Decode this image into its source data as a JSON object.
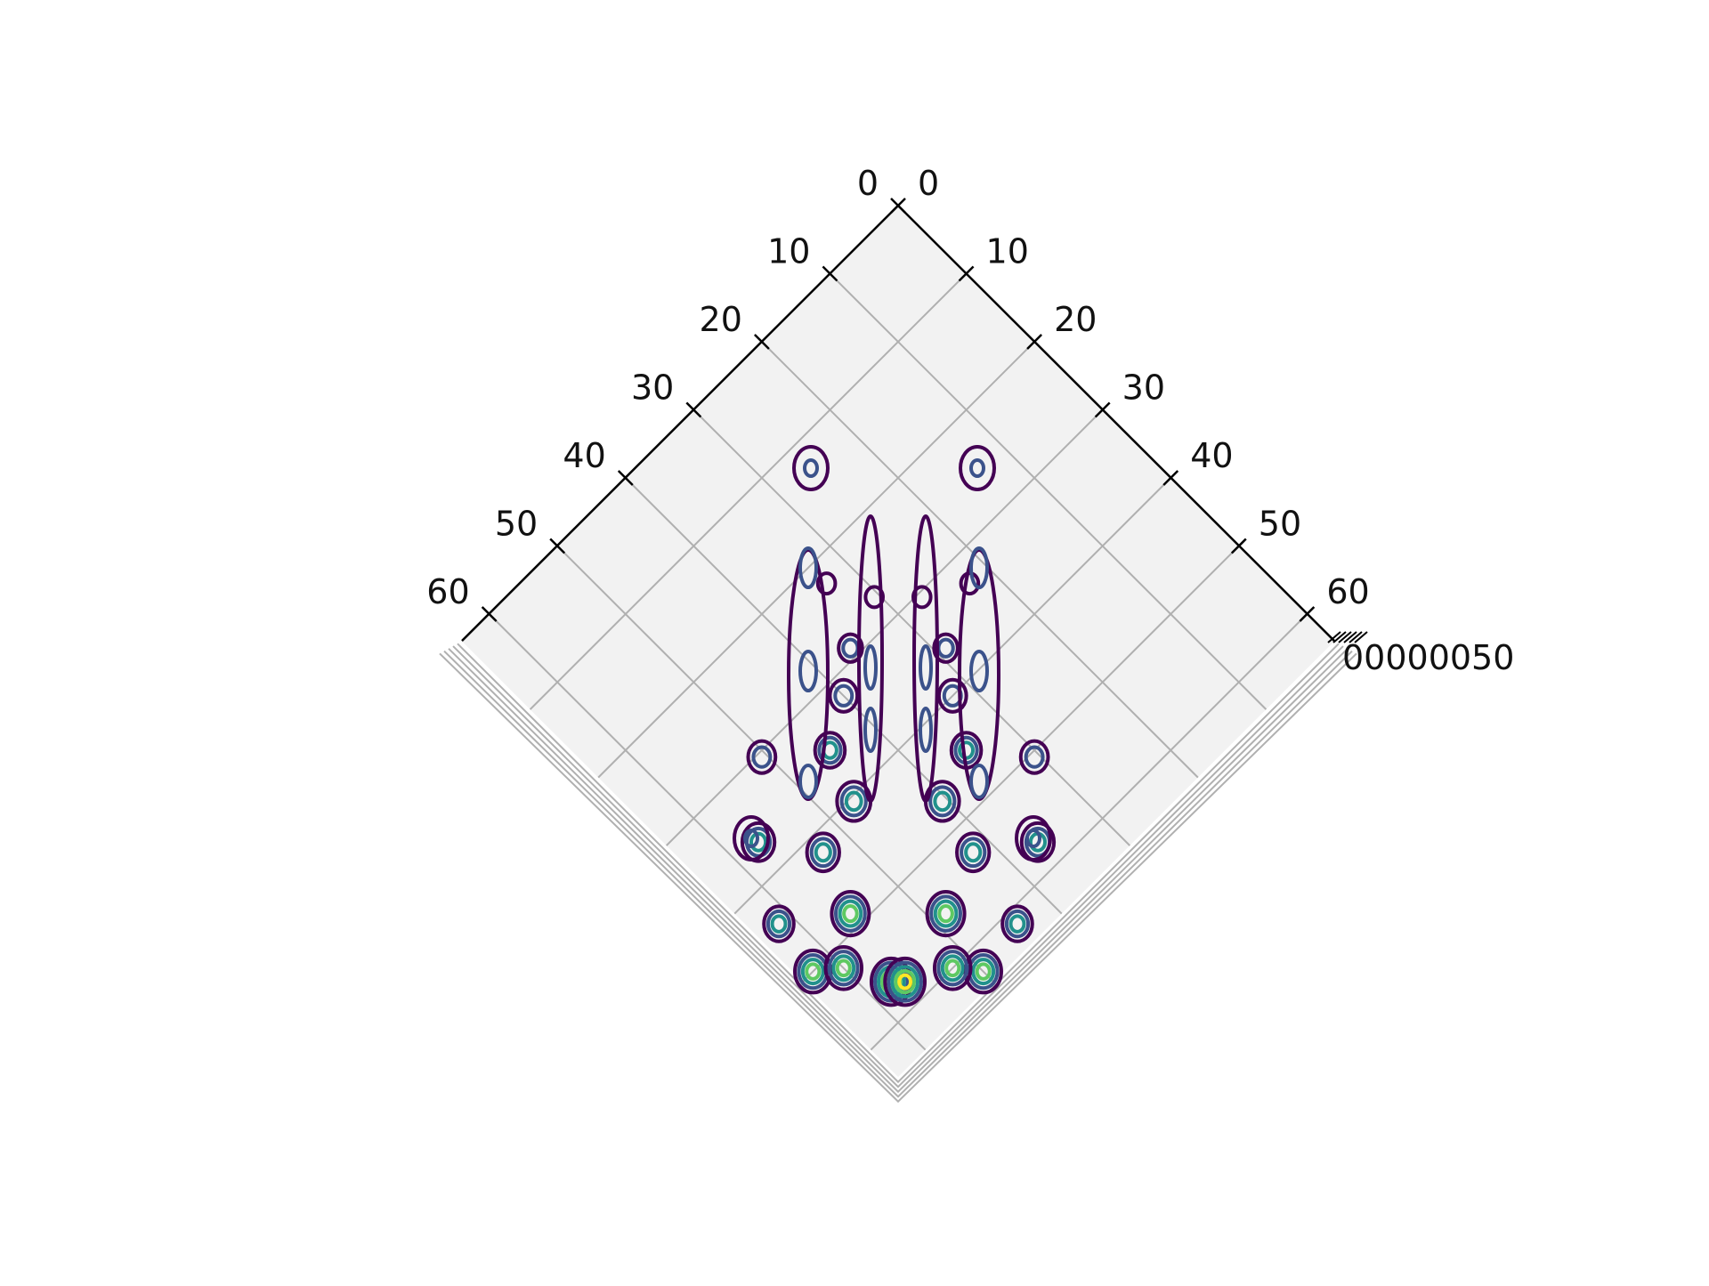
{
  "chart_data": {
    "type": "contour",
    "view": "3d-top-down",
    "title": "",
    "xlabel": "",
    "ylabel": "",
    "zlabel": "",
    "x_ticks": [
      "0",
      "10",
      "20",
      "30",
      "40",
      "50",
      "60"
    ],
    "y_ticks": [
      "0",
      "10",
      "20",
      "30",
      "40",
      "50",
      "60"
    ],
    "z_ticks_overlapping": "00000050",
    "xlim": [
      0,
      64
    ],
    "ylim": [
      0,
      64
    ],
    "grid": true,
    "colormap": [
      "#440154",
      "#3b528b",
      "#21918c",
      "#5ec962",
      "#fde725"
    ],
    "pane_color": "#f2f2f2",
    "grid_color": "#b0b0b0"
  }
}
